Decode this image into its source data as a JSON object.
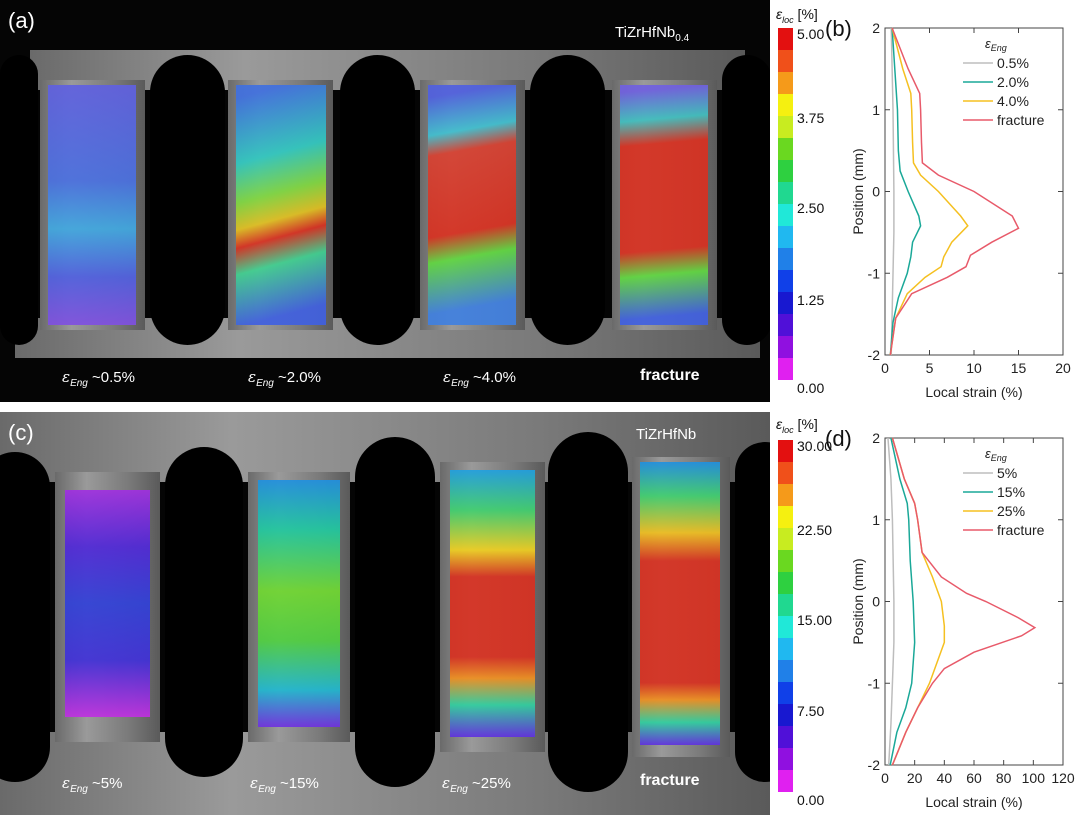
{
  "panel_a": {
    "label": "(a)",
    "alloy": "TiZrHfNb",
    "alloy_sub": "0.4",
    "captions": [
      {
        "pre": "ε",
        "sub": "Eng",
        "val": " ~0.5%"
      },
      {
        "pre": "ε",
        "sub": "Eng",
        "val": " ~2.0%"
      },
      {
        "pre": "ε",
        "sub": "Eng",
        "val": " ~4.0%"
      },
      {
        "pre": "",
        "sub": "",
        "val": "fracture"
      }
    ]
  },
  "panel_c": {
    "label": "(c)",
    "alloy": "TiZrHfNb",
    "captions": [
      {
        "pre": "ε",
        "sub": "Eng",
        "val": " ~5%"
      },
      {
        "pre": "ε",
        "sub": "Eng",
        "val": " ~15%"
      },
      {
        "pre": "ε",
        "sub": "Eng",
        "val": " ~25%"
      },
      {
        "pre": "",
        "sub": "",
        "val": "fracture"
      }
    ]
  },
  "colorbar_top": {
    "title": "ε",
    "title_sub": "loc",
    "unit": " [%]",
    "ticks": [
      "5.00",
      "3.75",
      "2.50",
      "1.25",
      "0.00"
    ]
  },
  "colorbar_bottom": {
    "title": "ε",
    "title_sub": "loc",
    "unit": " [%]",
    "ticks": [
      "30.00",
      "22.50",
      "15.00",
      "7.50",
      "0.00"
    ]
  },
  "colorbar_colors": [
    "#e31010",
    "#f0501a",
    "#f59a1a",
    "#f5f010",
    "#c8ec20",
    "#6ad820",
    "#2ed040",
    "#20d890",
    "#20e8d8",
    "#20b8f0",
    "#2080e8",
    "#1040e8",
    "#1818d0",
    "#5010d8",
    "#9010e0",
    "#e020f0"
  ],
  "chart_data": [
    {
      "type": "line",
      "panel": "(b)",
      "xlabel": "Local strain (%)",
      "ylabel": "Position (mm)",
      "xlim": [
        0,
        20
      ],
      "ylim": [
        -2,
        2
      ],
      "xticks": [
        "0",
        "5",
        "10",
        "15",
        "20"
      ],
      "yticks": [
        "-2",
        "-1",
        "0",
        "1",
        "2"
      ],
      "legend_title": "ε",
      "legend_title_sub": "Eng",
      "legend": "top-right",
      "series": [
        {
          "name": "0.5%",
          "color": "#bdbdbd",
          "points": [
            [
              0.7,
              2
            ],
            [
              0.9,
              1
            ],
            [
              1.0,
              0
            ],
            [
              1.0,
              -0.5
            ],
            [
              0.9,
              -1
            ],
            [
              0.7,
              -2
            ]
          ]
        },
        {
          "name": "2.0%",
          "color": "#1aa898",
          "points": [
            [
              0.8,
              2
            ],
            [
              1.1,
              1.5
            ],
            [
              1.4,
              1
            ],
            [
              1.5,
              0.5
            ],
            [
              1.7,
              0.25
            ],
            [
              2.6,
              0
            ],
            [
              3.8,
              -0.3
            ],
            [
              4.0,
              -0.42
            ],
            [
              3.1,
              -0.62
            ],
            [
              2.9,
              -0.8
            ],
            [
              2.5,
              -1
            ],
            [
              1.5,
              -1.3
            ],
            [
              0.9,
              -1.6
            ],
            [
              0.6,
              -2
            ]
          ]
        },
        {
          "name": "4.0%",
          "color": "#f5c020",
          "points": [
            [
              0.8,
              2
            ],
            [
              2.0,
              1.5
            ],
            [
              2.9,
              1.2
            ],
            [
              3.0,
              1
            ],
            [
              3.1,
              0.6
            ],
            [
              3.2,
              0.35
            ],
            [
              4.0,
              0.2
            ],
            [
              6.0,
              0
            ],
            [
              8.5,
              -0.3
            ],
            [
              9.3,
              -0.42
            ],
            [
              7.5,
              -0.62
            ],
            [
              6.6,
              -0.8
            ],
            [
              6.3,
              -0.92
            ],
            [
              4.5,
              -1.05
            ],
            [
              2.5,
              -1.25
            ],
            [
              1.2,
              -1.55
            ],
            [
              0.6,
              -2
            ]
          ]
        },
        {
          "name": "fracture",
          "color": "#e85a6a",
          "points": [
            [
              0.8,
              2
            ],
            [
              2.6,
              1.5
            ],
            [
              3.9,
              1.2
            ],
            [
              4.0,
              1
            ],
            [
              4.1,
              0.6
            ],
            [
              4.2,
              0.35
            ],
            [
              6.0,
              0.2
            ],
            [
              10,
              0
            ],
            [
              14.3,
              -0.3
            ],
            [
              15,
              -0.45
            ],
            [
              12,
              -0.62
            ],
            [
              9.6,
              -0.78
            ],
            [
              9.1,
              -0.92
            ],
            [
              7,
              -1.05
            ],
            [
              3,
              -1.25
            ],
            [
              1.2,
              -1.55
            ],
            [
              0.6,
              -2
            ]
          ]
        }
      ]
    },
    {
      "type": "line",
      "panel": "(d)",
      "xlabel": "Local strain (%)",
      "ylabel": "Position (mm)",
      "xlim": [
        0,
        120
      ],
      "ylim": [
        -2,
        2
      ],
      "xticks": [
        "0",
        "20",
        "40",
        "60",
        "80",
        "100",
        "120"
      ],
      "yticks": [
        "-2",
        "-1",
        "0",
        "1",
        "2"
      ],
      "legend_title": "ε",
      "legend_title_sub": "Eng",
      "legend": "top-right",
      "series": [
        {
          "name": "5%",
          "color": "#bdbdbd",
          "points": [
            [
              2,
              2
            ],
            [
              4,
              1.5
            ],
            [
              5,
              1
            ],
            [
              6,
              0
            ],
            [
              6,
              -0.5
            ],
            [
              5,
              -1
            ],
            [
              4,
              -1.5
            ],
            [
              2.5,
              -2
            ]
          ]
        },
        {
          "name": "15%",
          "color": "#1aa898",
          "points": [
            [
              4,
              2
            ],
            [
              10,
              1.5
            ],
            [
              15,
              1.2
            ],
            [
              16,
              1
            ],
            [
              17,
              0.5
            ],
            [
              19,
              0
            ],
            [
              20,
              -0.5
            ],
            [
              18,
              -1
            ],
            [
              14,
              -1.3
            ],
            [
              8,
              -1.6
            ],
            [
              3.5,
              -2
            ]
          ]
        },
        {
          "name": "25%",
          "color": "#f5c020",
          "points": [
            [
              5,
              2
            ],
            [
              13,
              1.5
            ],
            [
              20,
              1.2
            ],
            [
              22,
              1
            ],
            [
              25,
              0.6
            ],
            [
              32,
              0.3
            ],
            [
              38,
              0
            ],
            [
              40,
              -0.3
            ],
            [
              40,
              -0.5
            ],
            [
              34,
              -0.8
            ],
            [
              30,
              -1
            ],
            [
              22,
              -1.3
            ],
            [
              14,
              -1.6
            ],
            [
              5,
              -2
            ]
          ]
        },
        {
          "name": "fracture",
          "color": "#e85a6a",
          "points": [
            [
              5,
              2
            ],
            [
              13,
              1.5
            ],
            [
              20,
              1.2
            ],
            [
              22,
              1
            ],
            [
              25,
              0.6
            ],
            [
              38,
              0.3
            ],
            [
              55,
              0.1
            ],
            [
              68,
              0
            ],
            [
              90,
              -0.2
            ],
            [
              101,
              -0.32
            ],
            [
              92,
              -0.42
            ],
            [
              60,
              -0.62
            ],
            [
              40,
              -0.82
            ],
            [
              32,
              -1
            ],
            [
              22,
              -1.3
            ],
            [
              14,
              -1.6
            ],
            [
              5,
              -2
            ]
          ]
        }
      ]
    }
  ]
}
